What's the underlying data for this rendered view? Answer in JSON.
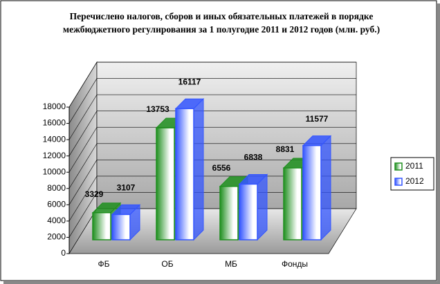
{
  "chart_data": {
    "type": "bar3d",
    "title": "Перечислено налогов, сборов и иных обязательных платежей в порядке межбюджетного регулирования  за 1 полугодие 2011 и  2012 годов (млн. руб.)",
    "categories": [
      "ФБ",
      "ОБ",
      "МБ",
      "Фонды"
    ],
    "series": [
      {
        "name": "2011",
        "color": "#1f8f1f",
        "values": [
          3329,
          13753,
          6556,
          8831
        ]
      },
      {
        "name": "2012",
        "color": "#3355ff",
        "values": [
          3107,
          16117,
          6838,
          11577
        ]
      }
    ],
    "ylim": [
      0,
      18000
    ],
    "yticks": [
      0,
      2000,
      4000,
      6000,
      8000,
      10000,
      12000,
      14000,
      16000,
      18000
    ],
    "grid": true,
    "legend": "right"
  }
}
